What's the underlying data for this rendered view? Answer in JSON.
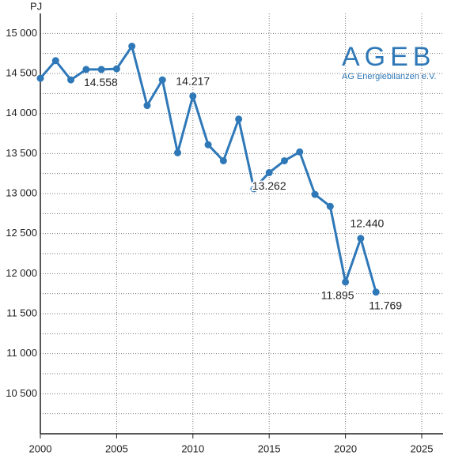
{
  "chart_data": {
    "type": "line",
    "y_label": "PJ",
    "logo": {
      "title": "AGEB",
      "subtitle": "AG Energiebilanzen e.V."
    },
    "x": [
      2000,
      2001,
      2002,
      2003,
      2004,
      2005,
      2006,
      2007,
      2008,
      2009,
      2010,
      2011,
      2012,
      2013,
      2014,
      2015,
      2016,
      2017,
      2018,
      2019,
      2020,
      2021,
      2022
    ],
    "series": [
      {
        "color": "#2f78b8",
        "values": [
          14440,
          14660,
          14420,
          14550,
          14550,
          14558,
          14840,
          14100,
          14420,
          13510,
          14217,
          13610,
          13410,
          13930,
          13060,
          13262,
          13410,
          13520,
          12990,
          12840,
          11895,
          12440,
          11769
        ],
        "value_labels": [
          null,
          null,
          null,
          null,
          null,
          "14.558",
          null,
          null,
          null,
          null,
          "14.217",
          null,
          null,
          null,
          null,
          "13.262",
          null,
          null,
          null,
          null,
          "11.895",
          "12.440",
          "11.769"
        ]
      }
    ],
    "xlim": [
      2000,
      2026.4
    ],
    "xticks": [
      2000,
      2005,
      2010,
      2015,
      2020,
      2025
    ],
    "ylim": [
      10000,
      15250
    ],
    "yticks": [
      {
        "value": 10500,
        "label": "10 500"
      },
      {
        "value": 11000,
        "label": "11 000"
      },
      {
        "value": 11500,
        "label": "11 500"
      },
      {
        "value": 12000,
        "label": "12 000"
      },
      {
        "value": 12500,
        "label": "12 500"
      },
      {
        "value": 13000,
        "label": "13 000"
      },
      {
        "value": 13500,
        "label": "13 500"
      },
      {
        "value": 14000,
        "label": "14 000"
      },
      {
        "value": 14500,
        "label": "14 500"
      },
      {
        "value": 15000,
        "label": "15 000"
      }
    ],
    "y_minor_ticks": [
      10250,
      10750,
      11250,
      11750,
      12250,
      12750,
      13250,
      13750,
      14250,
      14750
    ],
    "grid": true
  }
}
